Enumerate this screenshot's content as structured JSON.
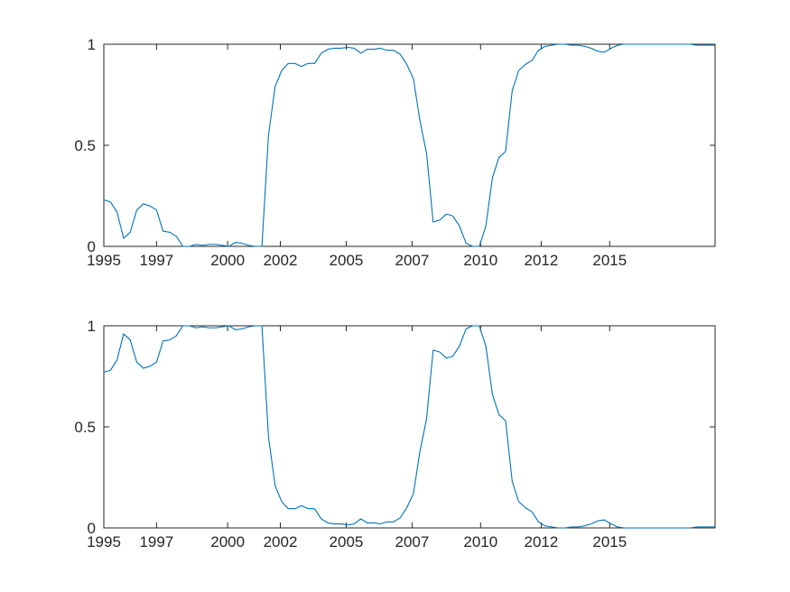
{
  "chart_data": [
    {
      "type": "line",
      "title": "",
      "xlabel": "",
      "ylabel": "",
      "xlim": [
        1995.0,
        2018.2
      ],
      "ylim": [
        0,
        1
      ],
      "grid": false,
      "legend": "none",
      "line_color": "#0072BD",
      "xticks": [
        1995.0,
        1997.0,
        1999.7,
        2001.7,
        2004.2,
        2006.7,
        2009.3,
        2011.6,
        2014.2
      ],
      "xtick_labels": [
        "1995",
        "1997",
        "2000",
        "2002",
        "2005",
        "2007",
        "2010",
        "2012",
        "2015"
      ],
      "yticks": [
        0,
        0.5,
        1
      ],
      "ytick_labels": [
        "0",
        "0.5",
        "1"
      ],
      "series": [
        {
          "x": [
            1995.0,
            1995.25,
            1995.5,
            1995.75,
            1996.0,
            1996.25,
            1996.5,
            1996.75,
            1997.0,
            1997.25,
            1997.5,
            1997.75,
            1998.0,
            1998.25,
            1998.5,
            1998.75,
            1999.0,
            1999.25,
            1999.5,
            1999.75,
            2000.0,
            2000.25,
            2000.5,
            2000.75,
            2001.0,
            2001.25,
            2001.5,
            2001.75,
            2002.0,
            2002.25,
            2002.5,
            2002.75,
            2003.0,
            2003.25,
            2003.5,
            2003.75,
            2004.0,
            2004.25,
            2004.5,
            2004.75,
            2005.0,
            2005.25,
            2005.5,
            2005.75,
            2006.0,
            2006.25,
            2006.5,
            2006.75,
            2007.0,
            2007.25,
            2007.5,
            2007.75,
            2008.0,
            2008.25,
            2008.5,
            2008.75,
            2009.0,
            2009.25,
            2009.5,
            2009.75,
            2010.0,
            2010.25,
            2010.5,
            2010.75,
            2011.0,
            2011.25,
            2011.5,
            2011.75,
            2012.0,
            2012.25,
            2012.5,
            2012.75,
            2013.0,
            2013.25,
            2013.5,
            2013.75,
            2014.0,
            2014.25,
            2014.5,
            2014.75,
            2015.0,
            2015.25,
            2015.5,
            2015.75,
            2016.0,
            2016.25,
            2016.5,
            2016.75,
            2017.0,
            2017.25,
            2017.5,
            2017.75,
            2018.0,
            2018.2
          ],
          "y": [
            0.23,
            0.22,
            0.17,
            0.04,
            0.07,
            0.18,
            0.21,
            0.2,
            0.18,
            0.075,
            0.07,
            0.05,
            0.0,
            0.0,
            0.01,
            0.005,
            0.01,
            0.01,
            0.005,
            0.0,
            0.02,
            0.015,
            0.005,
            0.0,
            0.0,
            0.55,
            0.79,
            0.87,
            0.905,
            0.905,
            0.89,
            0.905,
            0.905,
            0.955,
            0.975,
            0.98,
            0.98,
            0.985,
            0.98,
            0.955,
            0.975,
            0.975,
            0.98,
            0.97,
            0.97,
            0.95,
            0.9,
            0.83,
            0.62,
            0.46,
            0.12,
            0.13,
            0.16,
            0.15,
            0.1,
            0.015,
            0.0,
            0.0,
            0.1,
            0.34,
            0.44,
            0.47,
            0.77,
            0.87,
            0.9,
            0.92,
            0.97,
            0.99,
            0.995,
            1.0,
            1.0,
            0.995,
            0.995,
            0.99,
            0.98,
            0.965,
            0.96,
            0.98,
            0.995,
            1.0,
            1.0,
            1.0,
            1.0,
            1.0,
            1.0,
            1.0,
            1.0,
            1.0,
            1.0,
            1.0,
            0.995,
            0.995,
            0.995,
            0.995
          ]
        }
      ]
    },
    {
      "type": "line",
      "title": "",
      "xlabel": "",
      "ylabel": "",
      "xlim": [
        1995.0,
        2018.2
      ],
      "ylim": [
        0,
        1
      ],
      "grid": false,
      "legend": "none",
      "line_color": "#0072BD",
      "xticks": [
        1995.0,
        1997.0,
        1999.7,
        2001.7,
        2004.2,
        2006.7,
        2009.3,
        2011.6,
        2014.2
      ],
      "xtick_labels": [
        "1995",
        "1997",
        "2000",
        "2002",
        "2005",
        "2007",
        "2010",
        "2012",
        "2015"
      ],
      "yticks": [
        0,
        0.5,
        1
      ],
      "ytick_labels": [
        "0",
        "0.5",
        "1"
      ],
      "series": [
        {
          "x": [
            1995.0,
            1995.25,
            1995.5,
            1995.75,
            1996.0,
            1996.25,
            1996.5,
            1996.75,
            1997.0,
            1997.25,
            1997.5,
            1997.75,
            1998.0,
            1998.25,
            1998.5,
            1998.75,
            1999.0,
            1999.25,
            1999.5,
            1999.75,
            2000.0,
            2000.25,
            2000.5,
            2000.75,
            2001.0,
            2001.25,
            2001.5,
            2001.75,
            2002.0,
            2002.25,
            2002.5,
            2002.75,
            2003.0,
            2003.25,
            2003.5,
            2003.75,
            2004.0,
            2004.25,
            2004.5,
            2004.75,
            2005.0,
            2005.25,
            2005.5,
            2005.75,
            2006.0,
            2006.25,
            2006.5,
            2006.75,
            2007.0,
            2007.25,
            2007.5,
            2007.75,
            2008.0,
            2008.25,
            2008.5,
            2008.75,
            2009.0,
            2009.25,
            2009.5,
            2009.75,
            2010.0,
            2010.25,
            2010.5,
            2010.75,
            2011.0,
            2011.25,
            2011.5,
            2011.75,
            2012.0,
            2012.25,
            2012.5,
            2012.75,
            2013.0,
            2013.25,
            2013.5,
            2013.75,
            2014.0,
            2014.25,
            2014.5,
            2014.75,
            2015.0,
            2015.25,
            2015.5,
            2015.75,
            2016.0,
            2016.25,
            2016.5,
            2016.75,
            2017.0,
            2017.25,
            2017.5,
            2017.75,
            2018.0,
            2018.2
          ],
          "y": [
            0.77,
            0.78,
            0.83,
            0.96,
            0.93,
            0.82,
            0.79,
            0.8,
            0.82,
            0.925,
            0.93,
            0.95,
            1.0,
            1.0,
            0.99,
            0.995,
            0.99,
            0.99,
            0.995,
            1.0,
            0.98,
            0.985,
            0.995,
            1.0,
            1.0,
            0.45,
            0.21,
            0.13,
            0.095,
            0.095,
            0.11,
            0.095,
            0.095,
            0.045,
            0.025,
            0.02,
            0.02,
            0.015,
            0.02,
            0.045,
            0.025,
            0.025,
            0.02,
            0.03,
            0.03,
            0.05,
            0.1,
            0.17,
            0.38,
            0.54,
            0.88,
            0.87,
            0.84,
            0.85,
            0.9,
            0.985,
            1.0,
            1.0,
            0.9,
            0.66,
            0.56,
            0.53,
            0.23,
            0.13,
            0.1,
            0.08,
            0.03,
            0.01,
            0.005,
            0.0,
            0.0,
            0.005,
            0.005,
            0.01,
            0.02,
            0.035,
            0.04,
            0.02,
            0.005,
            0.0,
            0.0,
            0.0,
            0.0,
            0.0,
            0.0,
            0.0,
            0.0,
            0.0,
            0.0,
            0.0,
            0.005,
            0.005,
            0.005,
            0.005
          ]
        }
      ]
    }
  ]
}
